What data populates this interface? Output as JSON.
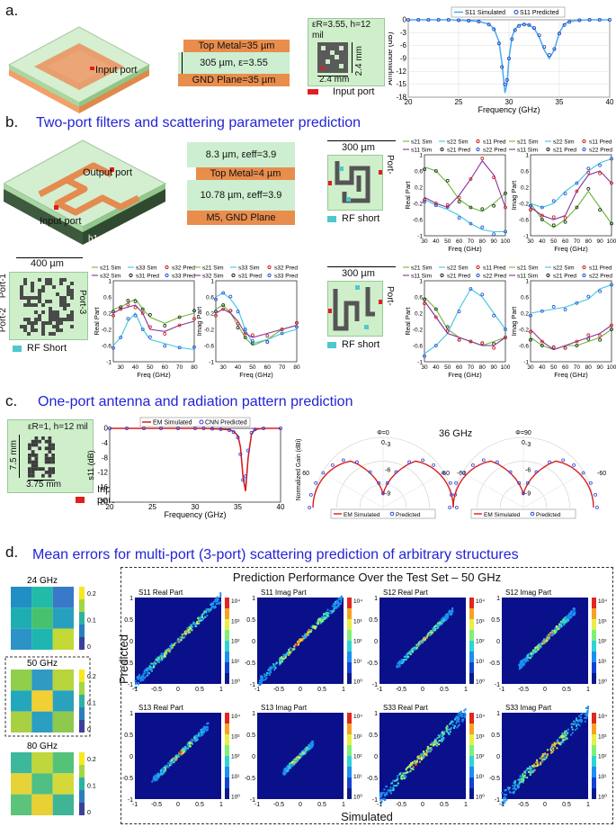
{
  "panel_a": {
    "label": "a.",
    "chip_port": "Input port",
    "stack": {
      "top": "Top Metal=35 µm",
      "mid": "305 µm, ε=3.55",
      "gnd": "GND Plane=35 µm"
    },
    "params_l1": "εR=3.55, h=12",
    "params_l2": "mil",
    "dim_v": "2.4 mm",
    "dim_h": "2.4 mm",
    "legend_port": "Input port"
  },
  "panel_b": {
    "label": "b.",
    "heading": "Two-port filters and scattering parameter prediction",
    "chip_port_out": "Output port",
    "chip_port_in": "Input port",
    "h1": "h1=8.3 µm",
    "h2": "h2=10.78 µm",
    "stack": {
      "top": "8.3 µm, εeff=3.9",
      "metal": "Top Metal=4 µm",
      "mid": "10.78 µm, εeff=3.9",
      "gnd": "M5, GND Plane"
    },
    "lay1": {
      "dim": "300 µm",
      "port_l": "Port-",
      "port_r": "Port-",
      "legend": "RF short"
    },
    "lay2": {
      "dim": "400 µm",
      "port1": "Port-1",
      "port2": "Port-2",
      "port3": "Port-3",
      "legend": "RF Short"
    },
    "lay3": {
      "dim": "300 µm",
      "port_l": "Port-",
      "port_r": "Port-",
      "legend": "RF short"
    }
  },
  "panel_c": {
    "label": "c.",
    "heading": "One-port antenna and radiation pattern prediction",
    "params": "εR=1, h=12 mil",
    "dim_v": "7.5 mm",
    "dim_h": "3.75 mm",
    "legend_port": "Input port",
    "freq_title": "36 GHz",
    "phi0": "Φ=0",
    "phi90": "Φ=90",
    "polar_ylabel": "Normalized Gain (dBi)"
  },
  "panel_d": {
    "label": "d.",
    "heading": "Mean errors for multi-port (3-port) scattering  prediction of arbitrary structures",
    "main_title": "Prediction Performance Over the Test Set – 50 GHz",
    "xlabel": "Simulated",
    "ylabel": "Predicted",
    "small": [
      {
        "title": "24 GHz",
        "ticks": [
          "0.2",
          "0.1",
          "0"
        ],
        "colors": [
          "#1f8fc4",
          "#21bba8",
          "#3a78c8",
          "#1eaeb2",
          "#47c16e",
          "#27a0c0",
          "#2d92c6",
          "#1fb5b0",
          "#c4d936"
        ]
      },
      {
        "title": "50 GHz",
        "ticks": [
          "0.2",
          "0.1",
          "0"
        ],
        "colors": [
          "#8fcf4b",
          "#2f9ac2",
          "#b8d43d",
          "#24a7bb",
          "#f2cf32",
          "#2aa2bd",
          "#a9d043",
          "#2a9fc0",
          "#8ec94d"
        ]
      },
      {
        "title": "80 GHz",
        "ticks": [
          "0.2",
          "0.1",
          "0"
        ],
        "colors": [
          "#3bb99a",
          "#c0d63b",
          "#55c27a",
          "#e6d337",
          "#4fbf84",
          "#d5d83a",
          "#5cc47a",
          "#e8d035",
          "#3fb596"
        ]
      }
    ],
    "scatters": [
      {
        "title": "S11 Real Part",
        "kind": "lin",
        "spread": 0.06,
        "cbar": [
          "10⁴",
          "10³",
          "10²",
          "10¹",
          "10⁰"
        ]
      },
      {
        "title": "S11 Imag Part",
        "kind": "lin",
        "spread": 0.05,
        "cbar": [
          "10⁴",
          "10³",
          "10²",
          "10¹",
          "10⁰"
        ]
      },
      {
        "title": "S12 Real Part",
        "kind": "half",
        "spread": 0.04,
        "cbar": [
          "10⁴",
          "10³",
          "10²",
          "10¹",
          "10⁰"
        ]
      },
      {
        "title": "S12 Imag Part",
        "kind": "half",
        "spread": 0.05,
        "cbar": [
          "10⁴",
          "10³",
          "10²",
          "10¹",
          "10⁰"
        ]
      },
      {
        "title": "S13 Real Part",
        "kind": "half",
        "spread": 0.05,
        "cbar": [
          "10⁴",
          "10³",
          "10²",
          "10¹",
          "10⁰"
        ]
      },
      {
        "title": "S13 Imag Part",
        "kind": "small",
        "spread": 0.05,
        "cbar": [
          "10⁴",
          "10³",
          "10²",
          "10¹",
          "10⁰"
        ]
      },
      {
        "title": "S33 Real Part",
        "kind": "lin",
        "spread": 0.08,
        "cbar": [
          "10⁴",
          "10³",
          "10²",
          "10¹",
          "10⁰"
        ]
      },
      {
        "title": "S33 Imag Part",
        "kind": "lin",
        "spread": 0.08,
        "cbar": [
          "10⁴",
          "10³",
          "10²",
          "10¹",
          "10⁰"
        ]
      }
    ],
    "scatter_xticks": [
      "-1",
      "-0.5",
      "0",
      "0.5",
      "1"
    ],
    "scatter_yticks": [
      "1",
      "0.5",
      "0",
      "-0.5",
      "-1"
    ]
  },
  "chart_data": [
    {
      "type": "line",
      "id": "a_s11",
      "xlabel": "Frequency (GHz)",
      "ylabel": "Amplitude (dB)",
      "xlim": [
        20,
        40
      ],
      "ylim": [
        -18,
        0
      ],
      "xticks": [
        20,
        25,
        30,
        35,
        40
      ],
      "yticks": [
        0,
        -3,
        -6,
        -9,
        -12,
        -15,
        -18
      ],
      "legend": [
        "S11 Simulated",
        "S11 Predicted"
      ],
      "x": [
        20,
        21,
        22,
        23,
        24,
        25,
        26,
        27,
        28,
        28.5,
        29,
        29.3,
        29.6,
        29.8,
        30,
        30.3,
        30.6,
        31,
        31.5,
        32,
        32.5,
        33,
        33.5,
        34,
        34.5,
        35,
        35.5,
        36,
        37,
        38,
        39,
        40
      ],
      "series": [
        {
          "name": "S11 Simulated",
          "values": [
            0,
            0,
            0,
            0,
            0,
            -0.1,
            -0.2,
            -0.4,
            -1,
            -2,
            -5,
            -10,
            -17,
            -15,
            -9,
            -4,
            -2.2,
            -1.2,
            -1,
            -1.2,
            -2,
            -4,
            -7,
            -9,
            -7,
            -3,
            -1,
            -0.4,
            -0.1,
            0,
            0,
            0
          ]
        },
        {
          "name": "S11 Predicted",
          "values": [
            0,
            0,
            0,
            0,
            0,
            -0.1,
            -0.2,
            -0.4,
            -1.1,
            -2.2,
            -5.5,
            -11,
            -15,
            -14,
            -9,
            -4.5,
            -2.4,
            -1.4,
            -1.1,
            -1.2,
            -1.9,
            -3.6,
            -6.3,
            -8.2,
            -6.8,
            -3.2,
            -1.2,
            -0.5,
            -0.1,
            0,
            0,
            0
          ]
        }
      ]
    },
    {
      "type": "line",
      "id": "b_real1",
      "ylabel": "Real Part",
      "xlabel": "Freq (GHz)",
      "xlim": [
        30,
        100
      ],
      "ylim": [
        -1,
        1
      ],
      "xticks": [
        30,
        40,
        50,
        60,
        70,
        80,
        90,
        100
      ],
      "yticks": [
        1,
        0.8,
        0.6,
        0.4,
        0.2,
        0,
        -0.2,
        -0.4,
        -0.6,
        -0.8,
        -1
      ],
      "legend": [
        "s21 Sim",
        "s22 Sim",
        "s11 Pred",
        "s11 Sim",
        "s21 Pred",
        "s22 Pred"
      ],
      "x": [
        30,
        40,
        50,
        60,
        70,
        80,
        90,
        100
      ],
      "series": [
        {
          "name": "s21",
          "color": "#6fb63a",
          "values": [
            0.7,
            0.6,
            0.3,
            -0.1,
            -0.3,
            -0.4,
            -0.2,
            0.05
          ]
        },
        {
          "name": "s22",
          "color": "#3fc6e0",
          "values": [
            -0.1,
            -0.25,
            -0.35,
            -0.5,
            -0.7,
            -0.85,
            -0.9,
            -0.9
          ]
        },
        {
          "name": "s11",
          "color": "#8b2f9a",
          "values": [
            -0.05,
            -0.2,
            -0.3,
            0,
            0.4,
            0.85,
            0.5,
            -0.3
          ]
        }
      ]
    },
    {
      "type": "line",
      "id": "b_imag1",
      "ylabel": "Imag Part",
      "xlabel": "Freq (GHz)",
      "xlim": [
        30,
        100
      ],
      "ylim": [
        -1,
        1
      ],
      "xticks": [
        30,
        40,
        50,
        60,
        70,
        80,
        90,
        100
      ],
      "yticks": [
        1,
        0.8,
        0.6,
        0.4,
        0.2,
        0,
        -0.2,
        -0.4,
        -0.6,
        -0.8,
        -1
      ],
      "legend": [
        "s21 Sim",
        "s22 Sim",
        "s11 Pred",
        "s11 Sim",
        "s21 Pred",
        "s22 Pred"
      ],
      "x": [
        30,
        40,
        50,
        60,
        70,
        80,
        90,
        100
      ],
      "series": [
        {
          "name": "s21",
          "color": "#6fb63a",
          "values": [
            -0.2,
            -0.6,
            -0.8,
            -0.6,
            -0.3,
            0.1,
            -0.3,
            -0.7
          ]
        },
        {
          "name": "s22",
          "color": "#3fc6e0",
          "values": [
            -0.2,
            -0.3,
            -0.2,
            0.1,
            0.3,
            0.6,
            0.8,
            0.9
          ]
        },
        {
          "name": "s11",
          "color": "#8b2f9a",
          "values": [
            -0.3,
            -0.5,
            -0.6,
            -0.5,
            0.1,
            0.5,
            0.6,
            0.3
          ]
        }
      ]
    },
    {
      "type": "line",
      "id": "b_real2",
      "ylabel": "Real Part",
      "xlabel": "Freq (GHz)",
      "xlim": [
        25,
        80
      ],
      "ylim": [
        -1,
        1
      ],
      "xticks": [
        30,
        40,
        50,
        60,
        70,
        80
      ],
      "yticks": [
        1,
        0.8,
        0.6,
        0.4,
        0.2,
        0,
        -0.2,
        -0.4,
        -0.6,
        -0.8,
        -1
      ],
      "legend": [
        "s21 Sim",
        "s33 Sim",
        "s32 Pred",
        "s32 Sim",
        "s31 Pred",
        "s33 Pred"
      ],
      "x": [
        25,
        30,
        35,
        40,
        45,
        50,
        60,
        70,
        80
      ],
      "series": [
        {
          "name": "s21",
          "color": "#6fb63a",
          "values": [
            0.3,
            0.35,
            0.45,
            0.55,
            0.3,
            0.1,
            -0.05,
            0.1,
            0.2
          ]
        },
        {
          "name": "s33",
          "color": "#3fc6e0",
          "values": [
            -0.6,
            -0.4,
            0.0,
            0.2,
            -0.2,
            -0.45,
            -0.55,
            -0.65,
            -0.7
          ]
        },
        {
          "name": "s32",
          "color": "#8b2f9a",
          "values": [
            0.2,
            0.3,
            0.35,
            0.4,
            0.2,
            -0.2,
            -0.25,
            -0.1,
            0.0
          ]
        }
      ]
    },
    {
      "type": "line",
      "id": "b_imag2",
      "ylabel": "Imag Part",
      "xlabel": "Freq (GHz)",
      "xlim": [
        25,
        80
      ],
      "ylim": [
        -1,
        1
      ],
      "xticks": [
        30,
        40,
        50,
        60,
        70,
        80
      ],
      "yticks": [
        1,
        0.8,
        0.6,
        0.4,
        0.2,
        0,
        -0.2,
        -0.4,
        -0.6,
        -0.8,
        -1
      ],
      "legend": [
        "s21 Sim",
        "s33 Sim",
        "s32 Pred",
        "s32 Sim",
        "s31 Pred",
        "s33 Pred"
      ],
      "x": [
        25,
        30,
        35,
        40,
        45,
        50,
        60,
        70,
        80
      ],
      "series": [
        {
          "name": "s21",
          "color": "#6fb63a",
          "values": [
            0.3,
            0.4,
            0.2,
            -0.1,
            -0.4,
            -0.6,
            -0.45,
            -0.2,
            -0.1
          ]
        },
        {
          "name": "s33",
          "color": "#3fc6e0",
          "values": [
            0.6,
            0.7,
            0.55,
            0.3,
            -0.2,
            -0.55,
            -0.45,
            -0.3,
            -0.2
          ]
        },
        {
          "name": "s32",
          "color": "#8b2f9a",
          "values": [
            0.2,
            0.3,
            0.2,
            0.0,
            -0.3,
            -0.4,
            -0.3,
            -0.2,
            -0.1
          ]
        }
      ]
    },
    {
      "type": "line",
      "id": "b_real3",
      "ylabel": "Real Part",
      "xlabel": "Freq (GHz)",
      "xlim": [
        30,
        100
      ],
      "ylim": [
        -1,
        1
      ],
      "xticks": [
        30,
        40,
        50,
        60,
        70,
        80,
        90,
        100
      ],
      "yticks": [
        1,
        0.8,
        0.6,
        0.4,
        0.2,
        0,
        -0.2,
        -0.4,
        -0.6,
        -0.8,
        -1
      ],
      "legend": [
        "s21 Sim",
        "s22 Sim",
        "s11 Pred",
        "s11 Sim",
        "s21 Pred",
        "s22 Pred"
      ],
      "x": [
        30,
        40,
        50,
        60,
        70,
        80,
        90,
        100
      ],
      "series": [
        {
          "name": "s21",
          "color": "#6fb63a",
          "values": [
            0.6,
            0.3,
            -0.2,
            -0.4,
            -0.5,
            -0.6,
            -0.5,
            -0.4
          ]
        },
        {
          "name": "s22",
          "color": "#3fc6e0",
          "values": [
            -0.8,
            -0.6,
            -0.3,
            0.3,
            0.8,
            0.6,
            0.2,
            -0.2
          ]
        },
        {
          "name": "s11",
          "color": "#8b2f9a",
          "values": [
            0.5,
            0.1,
            -0.3,
            -0.4,
            -0.5,
            -0.6,
            -0.6,
            -0.4
          ]
        }
      ]
    },
    {
      "type": "line",
      "id": "b_imag3",
      "ylabel": "Imag Part",
      "xlabel": "Freq (GHz)",
      "xlim": [
        30,
        100
      ],
      "ylim": [
        -1,
        1
      ],
      "xticks": [
        30,
        40,
        50,
        60,
        70,
        80,
        90,
        100
      ],
      "yticks": [
        1,
        0.8,
        0.6,
        0.4,
        0.2,
        0,
        -0.2,
        -0.4,
        -0.6,
        -0.8,
        -1
      ],
      "legend": [
        "s21 Sim",
        "s22 Sim",
        "s11 Pred",
        "s11 Sim",
        "s21 Pred",
        "s22 Pred"
      ],
      "x": [
        30,
        40,
        50,
        60,
        70,
        80,
        90,
        100
      ],
      "series": [
        {
          "name": "s21",
          "color": "#6fb63a",
          "values": [
            -0.4,
            -0.6,
            -0.7,
            -0.6,
            -0.6,
            -0.5,
            -0.4,
            -0.2
          ]
        },
        {
          "name": "s22",
          "color": "#3fc6e0",
          "values": [
            0.2,
            0.25,
            0.3,
            0.35,
            0.45,
            0.55,
            0.8,
            0.9
          ]
        },
        {
          "name": "s11",
          "color": "#8b2f9a",
          "values": [
            -0.2,
            -0.5,
            -0.7,
            -0.6,
            -0.5,
            -0.4,
            -0.3,
            -0.1
          ]
        }
      ]
    },
    {
      "type": "line",
      "id": "c_s11",
      "xlabel": "Frequency (GHz)",
      "ylabel": "s11 (dB)",
      "xlim": [
        20,
        40
      ],
      "ylim": [
        -20,
        0
      ],
      "xticks": [
        20,
        25,
        30,
        35,
        40
      ],
      "yticks": [
        0,
        -4,
        -8,
        -12,
        -16,
        -20
      ],
      "legend": [
        "EM Simulated",
        "CNN Predicted"
      ],
      "x": [
        20,
        22,
        24,
        26,
        28,
        30,
        31,
        32,
        33,
        34,
        34.5,
        35,
        35.3,
        35.6,
        35.9,
        36.2,
        36.6,
        37,
        38,
        40
      ],
      "series": [
        {
          "name": "EM Simulated",
          "values": [
            0,
            0,
            0,
            0,
            0,
            0,
            0,
            -0.1,
            -0.2,
            -0.4,
            -0.8,
            -2,
            -5,
            -13,
            -17,
            -8,
            -1.5,
            -0.3,
            0,
            0
          ]
        },
        {
          "name": "CNN Predicted",
          "values": [
            0,
            0,
            0,
            0,
            0,
            0,
            0,
            -0.1,
            -0.2,
            -0.5,
            -1,
            -2.5,
            -7,
            -14,
            -13,
            -6,
            -1.2,
            -0.3,
            0,
            0
          ]
        }
      ]
    },
    {
      "type": "line",
      "id": "c_polar",
      "radial_ticks": [
        "-3",
        "-6",
        "-9"
      ],
      "angle_ticks": [
        "0",
        "60",
        "-60"
      ],
      "legend": [
        "EM Simulated",
        "Predicted"
      ]
    }
  ]
}
